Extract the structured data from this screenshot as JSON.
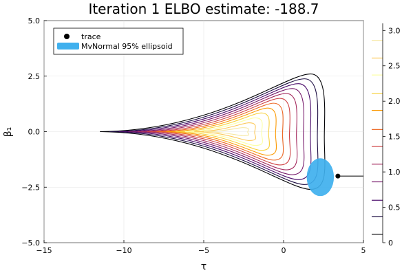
{
  "chart_data": {
    "type": "contour",
    "title": "Iteration 1  ELBO estimate: -188.7",
    "xlabel": "τ",
    "ylabel": "β₁",
    "xlim": [
      -15,
      5
    ],
    "ylim": [
      -5,
      5
    ],
    "x_ticks": [
      -15,
      -10,
      -5,
      0,
      5
    ],
    "x_tick_labels": [
      "−15",
      "−10",
      "−5",
      "0",
      "5"
    ],
    "y_ticks": [
      -5,
      -2.5,
      0,
      2.5,
      5
    ],
    "y_tick_labels": [
      "−5.0",
      "−2.5",
      "0.0",
      "2.5",
      "5.0"
    ],
    "grid": true,
    "legend": {
      "placement": "top-left",
      "entries": [
        {
          "label": "trace",
          "marker": "circle",
          "color": "#000000"
        },
        {
          "label": "MvNormal 95% ellipsoid",
          "marker": "patch",
          "color": "#3fb0ee"
        }
      ]
    },
    "colorbar": {
      "range": [
        0,
        3.1
      ],
      "ticks": [
        0,
        0.5,
        1.0,
        1.5,
        2.0,
        2.5,
        3.0
      ],
      "tick_labels": [
        "0",
        "0.5",
        "1.0",
        "1.5",
        "2.0",
        "2.5",
        "3.0"
      ],
      "levels": [
        0.12,
        0.37,
        0.6,
        0.86,
        1.11,
        1.36,
        1.6,
        1.87,
        2.11,
        2.37,
        2.61,
        2.86
      ],
      "colors": [
        "#000004",
        "#1b0c41",
        "#4a0c6b",
        "#781c6d",
        "#a52c60",
        "#cf4446",
        "#ed6925",
        "#fb9b06",
        "#f7d13d",
        "#fcffa4",
        "#fcc95a",
        "#f6e7a0"
      ]
    },
    "contour": {
      "tip_x": -11.5,
      "min_right_x": 1.6,
      "max_right_x": 2.6,
      "max_half_height": 2.6,
      "level_count": 12
    },
    "ellipse": {
      "center": [
        2.3,
        -2.05
      ],
      "rx": 0.85,
      "ry": 1.7,
      "color": "#3fb0ee"
    },
    "trace": {
      "points": [
        [
          3.4,
          -2.0
        ],
        [
          5.0,
          -2.0
        ]
      ],
      "color": "#000000"
    }
  }
}
